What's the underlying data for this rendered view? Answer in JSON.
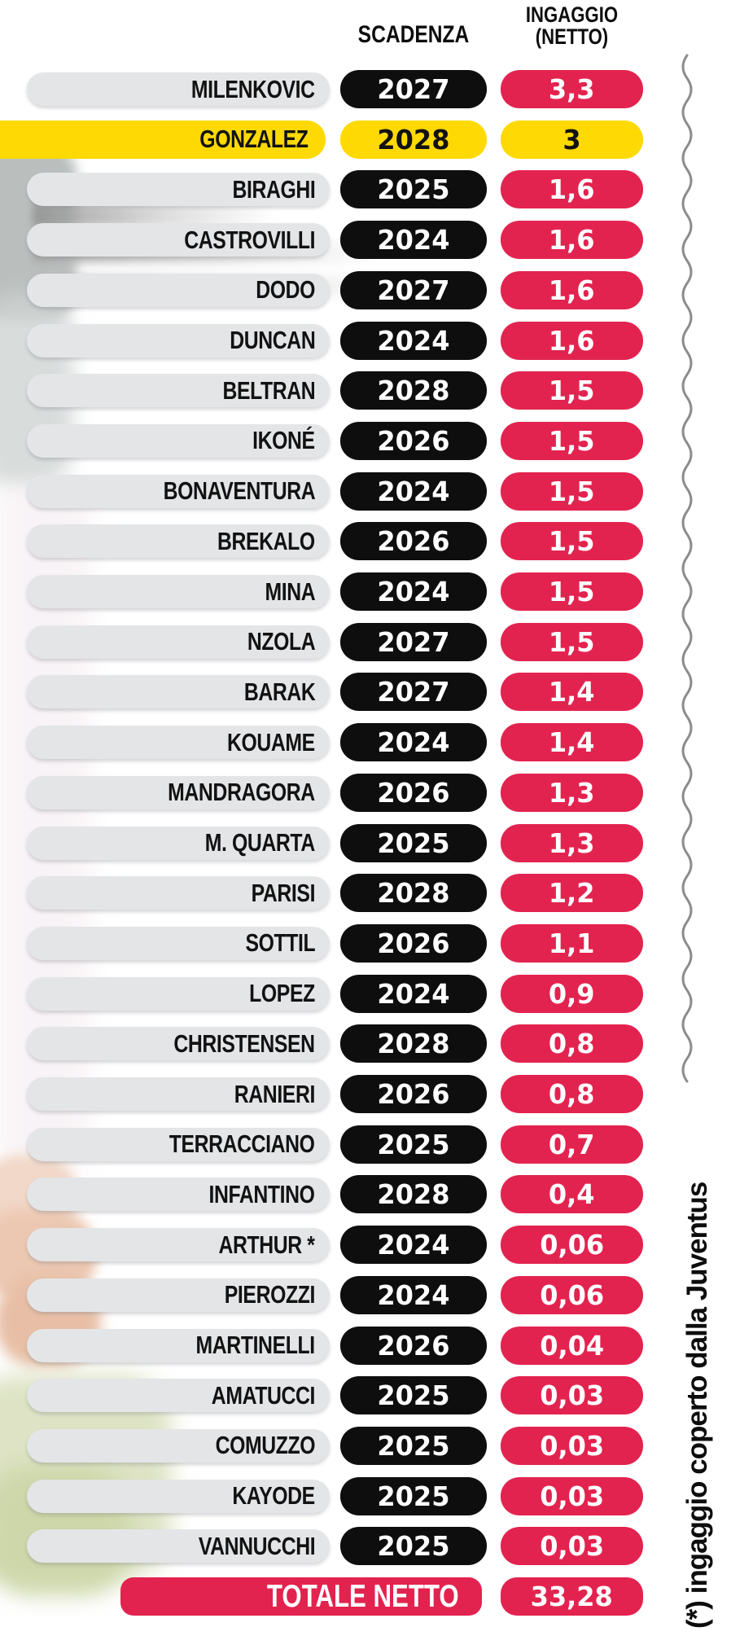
{
  "header": {
    "scadenza_label": "SCADENZA",
    "ingaggio_label_line1": "INGAGGIO",
    "ingaggio_label_line2": "(NETTO)"
  },
  "colors": {
    "pink": "#e3234f",
    "yellow": "#ffd903",
    "black_pill": "#0e0e0e",
    "gray_pill": "#e4e5e7",
    "squiggle": "#8c8c8c"
  },
  "players": [
    {
      "name": "MILENKOVIC",
      "scadenza": "2027",
      "ingaggio": "3,3",
      "highlight": false
    },
    {
      "name": "GONZALEZ",
      "scadenza": "2028",
      "ingaggio": "3",
      "highlight": true
    },
    {
      "name": "BIRAGHI",
      "scadenza": "2025",
      "ingaggio": "1,6",
      "highlight": false
    },
    {
      "name": "CASTROVILLI",
      "scadenza": "2024",
      "ingaggio": "1,6",
      "highlight": false
    },
    {
      "name": "DODO",
      "scadenza": "2027",
      "ingaggio": "1,6",
      "highlight": false
    },
    {
      "name": "DUNCAN",
      "scadenza": "2024",
      "ingaggio": "1,6",
      "highlight": false
    },
    {
      "name": "BELTRAN",
      "scadenza": "2028",
      "ingaggio": "1,5",
      "highlight": false
    },
    {
      "name": "IKONÉ",
      "scadenza": "2026",
      "ingaggio": "1,5",
      "highlight": false
    },
    {
      "name": "BONAVENTURA",
      "scadenza": "2024",
      "ingaggio": "1,5",
      "highlight": false
    },
    {
      "name": "BREKALO",
      "scadenza": "2026",
      "ingaggio": "1,5",
      "highlight": false
    },
    {
      "name": "MINA",
      "scadenza": "2024",
      "ingaggio": "1,5",
      "highlight": false
    },
    {
      "name": "NZOLA",
      "scadenza": "2027",
      "ingaggio": "1,5",
      "highlight": false
    },
    {
      "name": "BARAK",
      "scadenza": "2027",
      "ingaggio": "1,4",
      "highlight": false
    },
    {
      "name": "KOUAME",
      "scadenza": "2024",
      "ingaggio": "1,4",
      "highlight": false
    },
    {
      "name": "MANDRAGORA",
      "scadenza": "2026",
      "ingaggio": "1,3",
      "highlight": false
    },
    {
      "name": "M. QUARTA",
      "scadenza": "2025",
      "ingaggio": "1,3",
      "highlight": false
    },
    {
      "name": "PARISI",
      "scadenza": "2028",
      "ingaggio": "1,2",
      "highlight": false
    },
    {
      "name": "SOTTIL",
      "scadenza": "2026",
      "ingaggio": "1,1",
      "highlight": false
    },
    {
      "name": "LOPEZ",
      "scadenza": "2024",
      "ingaggio": "0,9",
      "highlight": false
    },
    {
      "name": "CHRISTENSEN",
      "scadenza": "2028",
      "ingaggio": "0,8",
      "highlight": false
    },
    {
      "name": "RANIERI",
      "scadenza": "2026",
      "ingaggio": "0,8",
      "highlight": false
    },
    {
      "name": "TERRACCIANO",
      "scadenza": "2025",
      "ingaggio": "0,7",
      "highlight": false
    },
    {
      "name": "INFANTINO",
      "scadenza": "2028",
      "ingaggio": "0,4",
      "highlight": false
    },
    {
      "name": "ARTHUR *",
      "scadenza": "2024",
      "ingaggio": "0,06",
      "highlight": false
    },
    {
      "name": "PIEROZZI",
      "scadenza": "2024",
      "ingaggio": "0,06",
      "highlight": false
    },
    {
      "name": "MARTINELLI",
      "scadenza": "2026",
      "ingaggio": "0,04",
      "highlight": false
    },
    {
      "name": "AMATUCCI",
      "scadenza": "2025",
      "ingaggio": "0,03",
      "highlight": false
    },
    {
      "name": "COMUZZO",
      "scadenza": "2025",
      "ingaggio": "0,03",
      "highlight": false
    },
    {
      "name": "KAYODE",
      "scadenza": "2025",
      "ingaggio": "0,03",
      "highlight": false
    },
    {
      "name": "VANNUCCHI",
      "scadenza": "2025",
      "ingaggio": "0,03",
      "highlight": false
    }
  ],
  "total": {
    "label": "TOTALE NETTO",
    "value": "33,28"
  },
  "footnote": {
    "text": "(*) ingaggio coperto dalla Juventus"
  },
  "chart_data": {
    "type": "table",
    "columns": [
      "",
      "SCADENZA",
      "INGAGGIO (NETTO)"
    ],
    "rows": [
      [
        "MILENKOVIC",
        2027,
        3.3
      ],
      [
        "GONZALEZ",
        2028,
        3
      ],
      [
        "BIRAGHI",
        2025,
        1.6
      ],
      [
        "CASTROVILLI",
        2024,
        1.6
      ],
      [
        "DODO",
        2027,
        1.6
      ],
      [
        "DUNCAN",
        2024,
        1.6
      ],
      [
        "BELTRAN",
        2028,
        1.5
      ],
      [
        "IKONÉ",
        2026,
        1.5
      ],
      [
        "BONAVENTURA",
        2024,
        1.5
      ],
      [
        "BREKALO",
        2026,
        1.5
      ],
      [
        "MINA",
        2024,
        1.5
      ],
      [
        "NZOLA",
        2027,
        1.5
      ],
      [
        "BARAK",
        2027,
        1.4
      ],
      [
        "KOUAME",
        2024,
        1.4
      ],
      [
        "MANDRAGORA",
        2026,
        1.3
      ],
      [
        "M. QUARTA",
        2025,
        1.3
      ],
      [
        "PARISI",
        2028,
        1.2
      ],
      [
        "SOTTIL",
        2026,
        1.1
      ],
      [
        "LOPEZ",
        2024,
        0.9
      ],
      [
        "CHRISTENSEN",
        2028,
        0.8
      ],
      [
        "RANIERI",
        2026,
        0.8
      ],
      [
        "TERRACCIANO",
        2025,
        0.7
      ],
      [
        "INFANTINO",
        2028,
        0.4
      ],
      [
        "ARTHUR *",
        2024,
        0.06
      ],
      [
        "PIEROZZI",
        2024,
        0.06
      ],
      [
        "MARTINELLI",
        2026,
        0.04
      ],
      [
        "AMATUCCI",
        2025,
        0.03
      ],
      [
        "COMUZZO",
        2025,
        0.03
      ],
      [
        "KAYODE",
        2025,
        0.03
      ],
      [
        "VANNUCCHI",
        2025,
        0.03
      ]
    ],
    "total_row": [
      "TOTALE NETTO",
      "",
      33.28
    ],
    "highlighted_row": "GONZALEZ",
    "footnote": "(*) ingaggio coperto dalla Juventus"
  }
}
